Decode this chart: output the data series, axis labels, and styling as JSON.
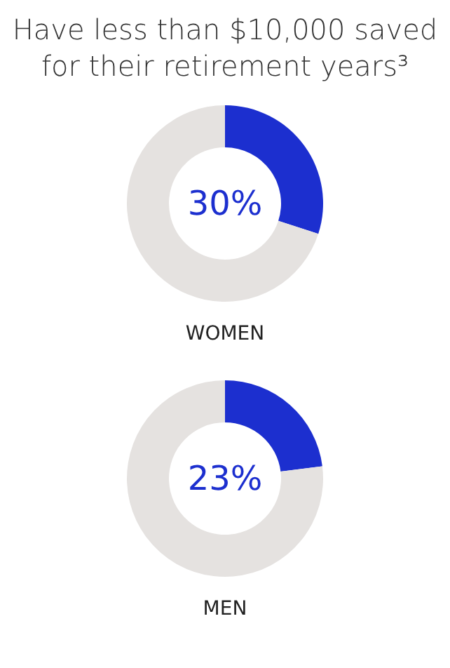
{
  "chart_data": [
    {
      "type": "donut",
      "title": "Have less than $10,000 saved for their retirement years³",
      "categories": [
        null,
        null
      ],
      "values": [
        30,
        70
      ],
      "colors": [
        "#1c2fcf",
        "#e5e2e0"
      ],
      "value_labels": [
        "30%",
        null
      ],
      "xlabel": "WOMEN"
    },
    {
      "type": "donut",
      "categories": [
        null,
        null
      ],
      "values": [
        23,
        77
      ],
      "colors": [
        "#1c2fcf",
        "#e5e2e0"
      ],
      "value_labels": [
        "23%",
        null
      ],
      "xlabel": "MEN"
    }
  ]
}
